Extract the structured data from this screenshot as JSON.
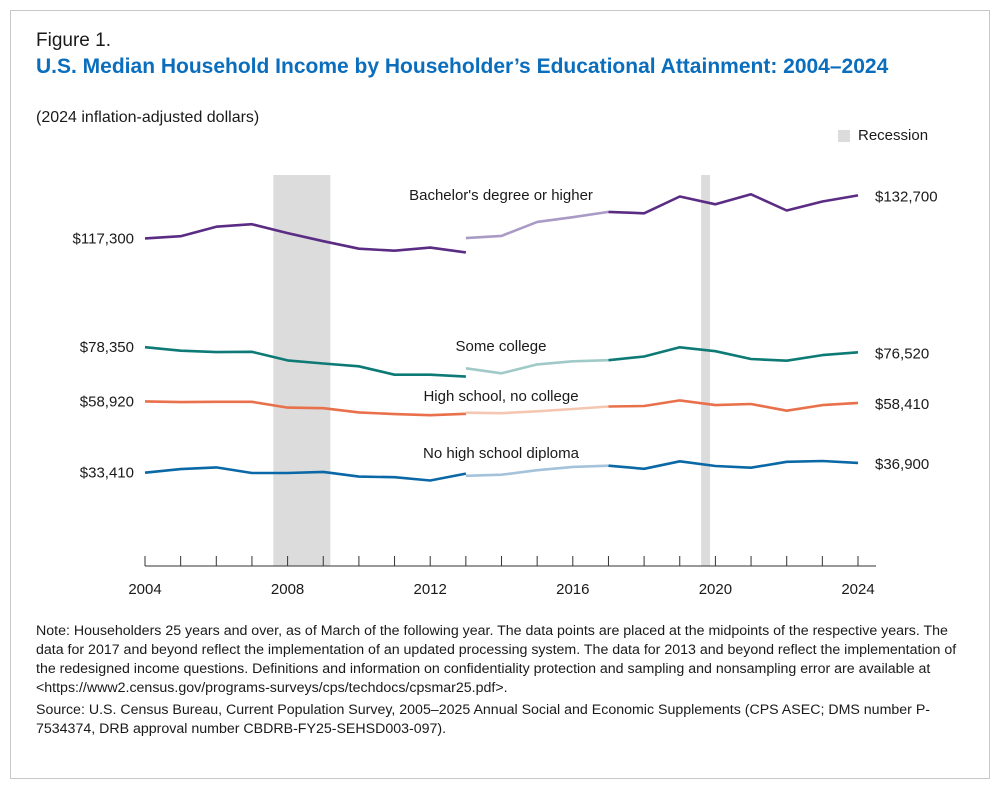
{
  "figure_label": "Figure 1.",
  "title": "U.S. Median Household Income by Householder’s Educational Attainment: 2004–2024",
  "subtitle": "(2024 inflation-adjusted dollars)",
  "legend": {
    "recession_label": "Recession",
    "recession_color": "#dcdcdc"
  },
  "note": "Note: Householders 25 years and over, as of March of the following year. The data points are placed at the midpoints of the respective years. The data for 2017 and beyond reflect the implementation of an updated processing system. The data for 2013 and beyond reflect the implementation of the redesigned income questions. Definitions and information on confidentiality protection and sampling and nonsampling error are available at <https://www2.census.gov/programs-surveys/cps/techdocs/cpsmar25.pdf>.",
  "source": "Source: U.S. Census Bureau, Current Population Survey, 2005–2025 Annual Social and Economic Supplements (CPS ASEC; DMS number P-7534374, DRB approval number CBDRB-FY25-SEHSD003-097).",
  "chart_data": {
    "type": "line",
    "xlim": [
      2004,
      2024
    ],
    "ylim": [
      0,
      140000
    ],
    "x_ticks": [
      2004,
      2005,
      2006,
      2007,
      2008,
      2009,
      2010,
      2011,
      2012,
      2013,
      2014,
      2015,
      2016,
      2017,
      2018,
      2019,
      2020,
      2021,
      2022,
      2023,
      2024
    ],
    "x_tick_labels": [
      "2004",
      "2008",
      "2012",
      "2016",
      "2020",
      "2024"
    ],
    "x_tick_label_values": [
      2004,
      2008,
      2012,
      2016,
      2020,
      2024
    ],
    "recessions": [
      [
        2007.6,
        2009.2
      ],
      [
        2019.6,
        2019.85
      ]
    ],
    "break_at": 2013,
    "series": [
      {
        "name": "Bachelor's degree or higher",
        "color": "#5b2c83",
        "light_color": "#a99bc5",
        "old": {
          "x": [
            2004,
            2005,
            2006,
            2007,
            2008,
            2009,
            2010,
            2011,
            2012,
            2013
          ],
          "y": [
            117300,
            118100,
            121500,
            122400,
            119200,
            116300,
            113600,
            112900,
            114000,
            112300
          ]
        },
        "new": {
          "x": [
            2013,
            2014,
            2015,
            2016,
            2017
          ],
          "y": [
            117400,
            118200,
            123200,
            124900,
            126800
          ]
        },
        "updated": {
          "x": [
            2017,
            2018,
            2019,
            2020,
            2021,
            2022,
            2023,
            2024
          ],
          "y": [
            126800,
            126300,
            132300,
            129500,
            133100,
            127300,
            130500,
            132700
          ]
        },
        "first_label": "$117,300",
        "last_label": "$132,700"
      },
      {
        "name": "Some college",
        "color": "#0d7a75",
        "light_color": "#9fcac7",
        "old": {
          "x": [
            2004,
            2005,
            2006,
            2007,
            2008,
            2009,
            2010,
            2011,
            2012,
            2013
          ],
          "y": [
            78350,
            77100,
            76600,
            76700,
            73600,
            72500,
            71500,
            68500,
            68500,
            67800
          ]
        },
        "new": {
          "x": [
            2013,
            2014,
            2015,
            2016,
            2017
          ],
          "y": [
            70800,
            69000,
            72200,
            73300,
            73700
          ]
        },
        "updated": {
          "x": [
            2017,
            2018,
            2019,
            2020,
            2021,
            2022,
            2023,
            2024
          ],
          "y": [
            73700,
            75000,
            78300,
            76900,
            74100,
            73500,
            75500,
            76520
          ]
        },
        "first_label": "$78,350",
        "last_label": "$76,520"
      },
      {
        "name": "High school, no college",
        "color": "#e8704a",
        "light_color": "#f5c6b0",
        "old": {
          "x": [
            2004,
            2005,
            2006,
            2007,
            2008,
            2009,
            2010,
            2011,
            2012,
            2013
          ],
          "y": [
            58920,
            58700,
            58800,
            58800,
            56700,
            56500,
            55000,
            54400,
            54000,
            54500
          ]
        },
        "new": {
          "x": [
            2013,
            2014,
            2015,
            2016,
            2017
          ],
          "y": [
            54900,
            54700,
            55400,
            56200,
            57100
          ]
        },
        "updated": {
          "x": [
            2017,
            2018,
            2019,
            2020,
            2021,
            2022,
            2023,
            2024
          ],
          "y": [
            57100,
            57300,
            59300,
            57600,
            58000,
            55600,
            57600,
            58410
          ]
        },
        "first_label": "$58,920",
        "last_label": "$58,410"
      },
      {
        "name": "No high school diploma",
        "color": "#0a68a6",
        "light_color": "#a4c3db",
        "old": {
          "x": [
            2004,
            2005,
            2006,
            2007,
            2008,
            2009,
            2010,
            2011,
            2012,
            2013
          ],
          "y": [
            33410,
            34700,
            35300,
            33300,
            33300,
            33700,
            32000,
            31800,
            30600,
            33100
          ]
        },
        "new": {
          "x": [
            2013,
            2014,
            2015,
            2016,
            2017
          ],
          "y": [
            32300,
            32700,
            34300,
            35500,
            35900
          ]
        },
        "updated": {
          "x": [
            2017,
            2018,
            2019,
            2020,
            2021,
            2022,
            2023,
            2024
          ],
          "y": [
            35900,
            34800,
            37500,
            35800,
            35200,
            37300,
            37600,
            36900
          ]
        },
        "first_label": "$33,410",
        "last_label": "$36,900"
      }
    ]
  }
}
